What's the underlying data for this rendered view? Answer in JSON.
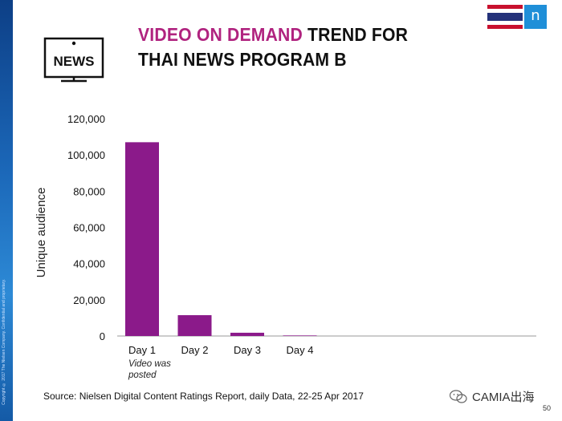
{
  "title": {
    "accent": "VIDEO ON DEMAND",
    "rest_line1": " TREND FOR",
    "line2": "THAI NEWS PROGRAM B"
  },
  "news_icon": {
    "label": "NEWS",
    "icon": "tv-news-icon"
  },
  "brand": {
    "logo_letter": "n"
  },
  "copyright": "Copyright © 2017 The Nielsen Company. Confidential and proprietary.",
  "chart_data": {
    "type": "bar",
    "categories": [
      "Day 1",
      "Day 2",
      "Day 3",
      "Day 4"
    ],
    "values": [
      107000,
      11500,
      1800,
      300
    ],
    "ylabel": "Unique audience",
    "ylim": [
      0,
      120000
    ],
    "yticks": [
      0,
      20000,
      40000,
      60000,
      80000,
      100000,
      120000
    ],
    "ytick_labels": [
      "0",
      "20,000",
      "40,000",
      "60,000",
      "80,000",
      "100,000",
      "120,000"
    ],
    "grid": false,
    "bar_color": "#8b1a8a"
  },
  "annotation": "Video was posted",
  "source": "Source: Nielsen Digital Content Ratings Report, daily Data, 22-25 Apr 2017",
  "watermark": "CAMIA出海",
  "page_number": "50",
  "colors": {
    "accent": "#b0237f",
    "bar": "#8b1a8a",
    "strip": "#1b67b8"
  }
}
